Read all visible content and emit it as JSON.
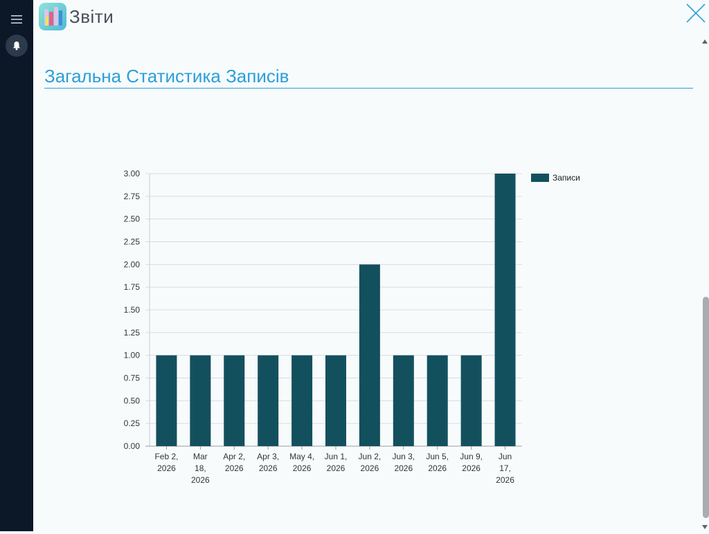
{
  "app": {
    "title": "Звіти"
  },
  "sidebar": {
    "menu_icon": "hamburger-menu-icon",
    "notifications_icon": "bell-icon"
  },
  "header": {
    "close_icon": "close-icon"
  },
  "page": {
    "title": "Загальна Статистика Записів"
  },
  "colors": {
    "sidebar_bg": "#0c1828",
    "accent": "#2b9fd8",
    "bar": "#13505e",
    "background": "#f7fbfc"
  },
  "chart_data": {
    "type": "bar",
    "categories": [
      [
        "Feb 2,",
        "2026"
      ],
      [
        "Mar",
        "18,",
        "2026"
      ],
      [
        "Apr 2,",
        "2026"
      ],
      [
        "Apr 3,",
        "2026"
      ],
      [
        "May 4,",
        "2026"
      ],
      [
        "Jun 1,",
        "2026"
      ],
      [
        "Jun 2,",
        "2026"
      ],
      [
        "Jun 3,",
        "2026"
      ],
      [
        "Jun 5,",
        "2026"
      ],
      [
        "Jun 9,",
        "2026"
      ],
      [
        "Jun",
        "17,",
        "2026"
      ]
    ],
    "series": [
      {
        "name": "Записи",
        "values": [
          1,
          1,
          1,
          1,
          1,
          1,
          2,
          1,
          1,
          1,
          3
        ]
      }
    ],
    "ylim": [
      0,
      3
    ],
    "yticks": [
      "0.00",
      "0.25",
      "0.50",
      "0.75",
      "1.00",
      "1.25",
      "1.50",
      "1.75",
      "2.00",
      "2.25",
      "2.50",
      "2.75",
      "3.00"
    ],
    "grid": true,
    "legend": "right"
  }
}
